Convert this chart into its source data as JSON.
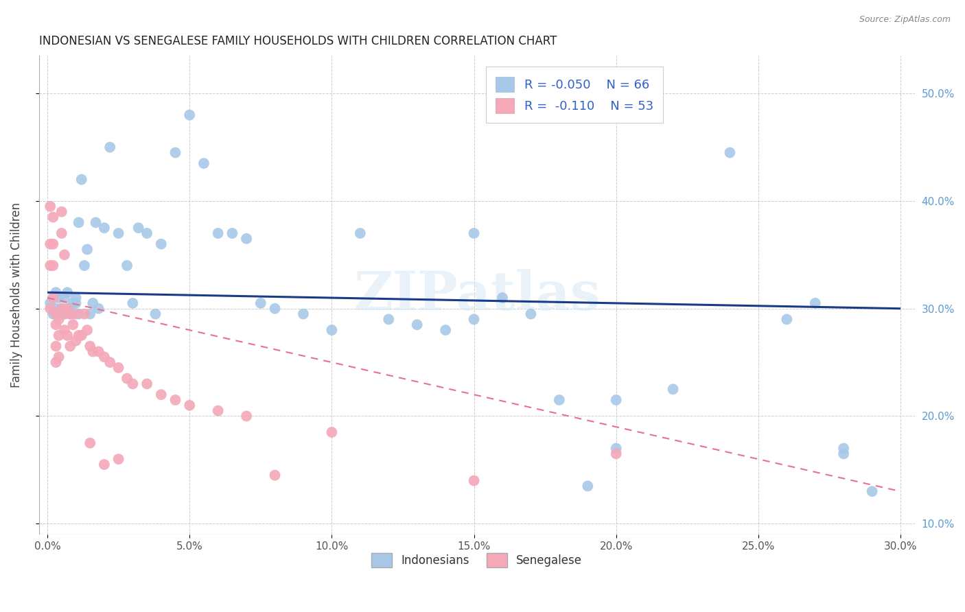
{
  "title": "INDONESIAN VS SENEGALESE FAMILY HOUSEHOLDS WITH CHILDREN CORRELATION CHART",
  "source": "Source: ZipAtlas.com",
  "xlim": [
    -0.003,
    0.305
  ],
  "ylim": [
    0.09,
    0.535
  ],
  "x_ticks": [
    0.0,
    0.05,
    0.1,
    0.15,
    0.2,
    0.25,
    0.3
  ],
  "y_ticks": [
    0.1,
    0.2,
    0.3,
    0.4,
    0.5
  ],
  "ylabel": "Family Households with Children",
  "legend_label1": "Indonesians",
  "legend_label2": "Senegalese",
  "R1": -0.05,
  "N1": 66,
  "R2": -0.11,
  "N2": 53,
  "color_indonesian": "#a8c8e8",
  "color_senegalese": "#f4a8b8",
  "line_color_indonesian": "#1a3a8a",
  "line_color_senegalese": "#e87090",
  "watermark": "ZIPatlas",
  "indo_x": [
    0.001,
    0.002,
    0.002,
    0.003,
    0.003,
    0.004,
    0.004,
    0.005,
    0.005,
    0.006,
    0.006,
    0.007,
    0.007,
    0.008,
    0.008,
    0.009,
    0.009,
    0.01,
    0.01,
    0.011,
    0.011,
    0.012,
    0.013,
    0.014,
    0.015,
    0.016,
    0.017,
    0.018,
    0.02,
    0.022,
    0.025,
    0.028,
    0.03,
    0.032,
    0.035,
    0.038,
    0.04,
    0.045,
    0.05,
    0.055,
    0.06,
    0.065,
    0.07,
    0.075,
    0.08,
    0.09,
    0.1,
    0.11,
    0.12,
    0.13,
    0.14,
    0.15,
    0.16,
    0.17,
    0.18,
    0.19,
    0.2,
    0.22,
    0.24,
    0.26,
    0.27,
    0.28,
    0.29,
    0.15,
    0.2,
    0.28
  ],
  "indo_y": [
    0.305,
    0.31,
    0.295,
    0.315,
    0.3,
    0.295,
    0.31,
    0.3,
    0.295,
    0.31,
    0.295,
    0.3,
    0.315,
    0.3,
    0.295,
    0.305,
    0.295,
    0.31,
    0.305,
    0.295,
    0.38,
    0.42,
    0.34,
    0.355,
    0.295,
    0.305,
    0.38,
    0.3,
    0.375,
    0.45,
    0.37,
    0.34,
    0.305,
    0.375,
    0.37,
    0.295,
    0.36,
    0.445,
    0.48,
    0.435,
    0.37,
    0.37,
    0.365,
    0.305,
    0.3,
    0.295,
    0.28,
    0.37,
    0.29,
    0.285,
    0.28,
    0.29,
    0.31,
    0.295,
    0.215,
    0.135,
    0.17,
    0.225,
    0.445,
    0.29,
    0.305,
    0.165,
    0.13,
    0.37,
    0.215,
    0.17
  ],
  "sene_x": [
    0.001,
    0.001,
    0.001,
    0.001,
    0.002,
    0.002,
    0.002,
    0.002,
    0.003,
    0.003,
    0.003,
    0.003,
    0.004,
    0.004,
    0.004,
    0.005,
    0.005,
    0.005,
    0.006,
    0.006,
    0.006,
    0.007,
    0.007,
    0.008,
    0.008,
    0.009,
    0.01,
    0.01,
    0.011,
    0.012,
    0.013,
    0.014,
    0.015,
    0.016,
    0.018,
    0.02,
    0.022,
    0.025,
    0.028,
    0.03,
    0.035,
    0.04,
    0.045,
    0.05,
    0.06,
    0.07,
    0.08,
    0.1,
    0.15,
    0.2,
    0.015,
    0.02,
    0.025
  ],
  "sene_y": [
    0.395,
    0.36,
    0.34,
    0.3,
    0.385,
    0.36,
    0.34,
    0.31,
    0.295,
    0.285,
    0.265,
    0.25,
    0.29,
    0.275,
    0.255,
    0.39,
    0.37,
    0.3,
    0.35,
    0.295,
    0.28,
    0.3,
    0.275,
    0.295,
    0.265,
    0.285,
    0.295,
    0.27,
    0.275,
    0.275,
    0.295,
    0.28,
    0.265,
    0.26,
    0.26,
    0.255,
    0.25,
    0.245,
    0.235,
    0.23,
    0.23,
    0.22,
    0.215,
    0.21,
    0.205,
    0.2,
    0.145,
    0.185,
    0.14,
    0.165,
    0.175,
    0.155,
    0.16
  ]
}
